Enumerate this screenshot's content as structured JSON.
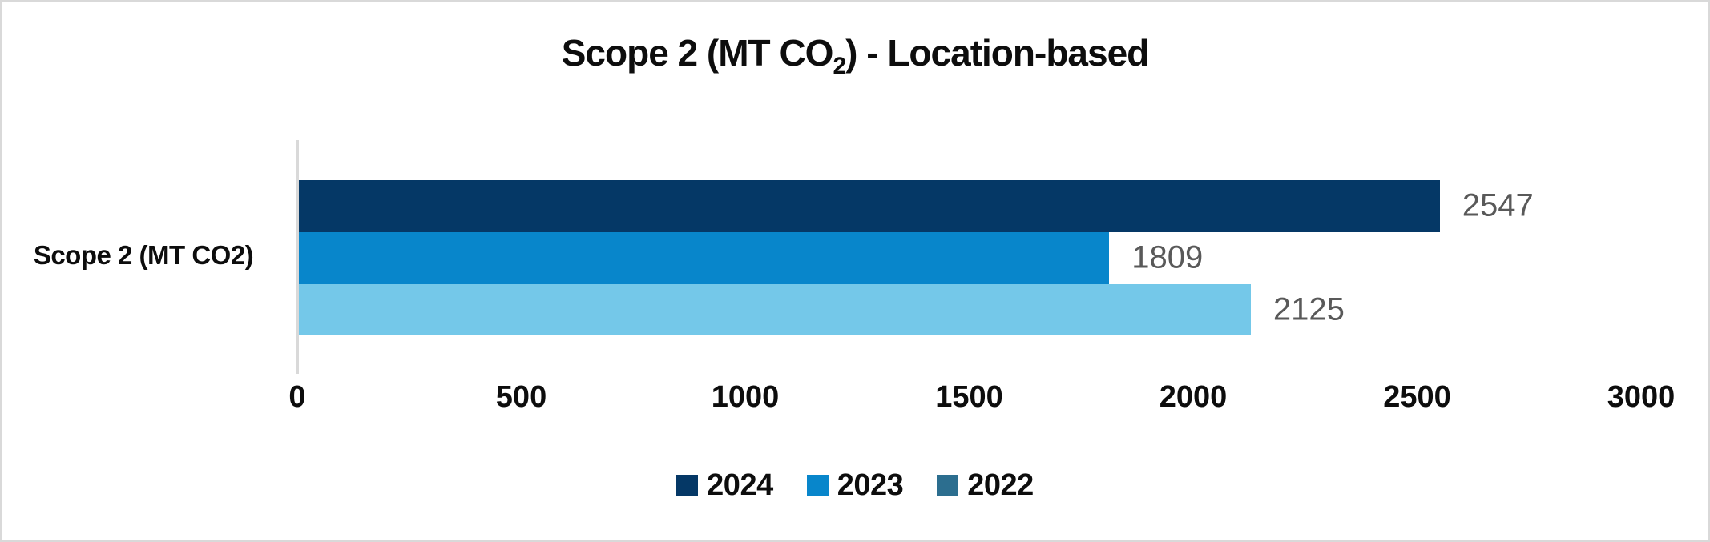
{
  "chart_data": {
    "type": "bar",
    "orientation": "horizontal",
    "title": {
      "prefix": "Scope 2 (MT CO",
      "subscript": "2",
      "suffix": ") - Location-based"
    },
    "category_label": "Scope 2 (MT CO2)",
    "categories": [
      "Scope 2 (MT CO2)"
    ],
    "series": [
      {
        "name": "2024",
        "value": 2547,
        "data_label": "2547",
        "bar_color": "#053866",
        "legend_color": "#053866"
      },
      {
        "name": "2023",
        "value": 1809,
        "data_label": "1809",
        "bar_color": "#0886cb",
        "legend_color": "#0886cb"
      },
      {
        "name": "2022",
        "value": 2125,
        "data_label": "2125",
        "bar_color": "#74c8e9",
        "legend_color": "#2c6e8f"
      }
    ],
    "xlabel": "",
    "ylabel": "",
    "xlim": [
      0,
      3000
    ],
    "ticks": [
      "0",
      "500",
      "1000",
      "1500",
      "2000",
      "2500",
      "3000"
    ],
    "tick_values": [
      0,
      500,
      1000,
      1500,
      2000,
      2500,
      3000
    ],
    "grid": false,
    "legend_position": "bottom",
    "data_label_color": "#595959",
    "axis_line_color": "#d9d9d9"
  }
}
